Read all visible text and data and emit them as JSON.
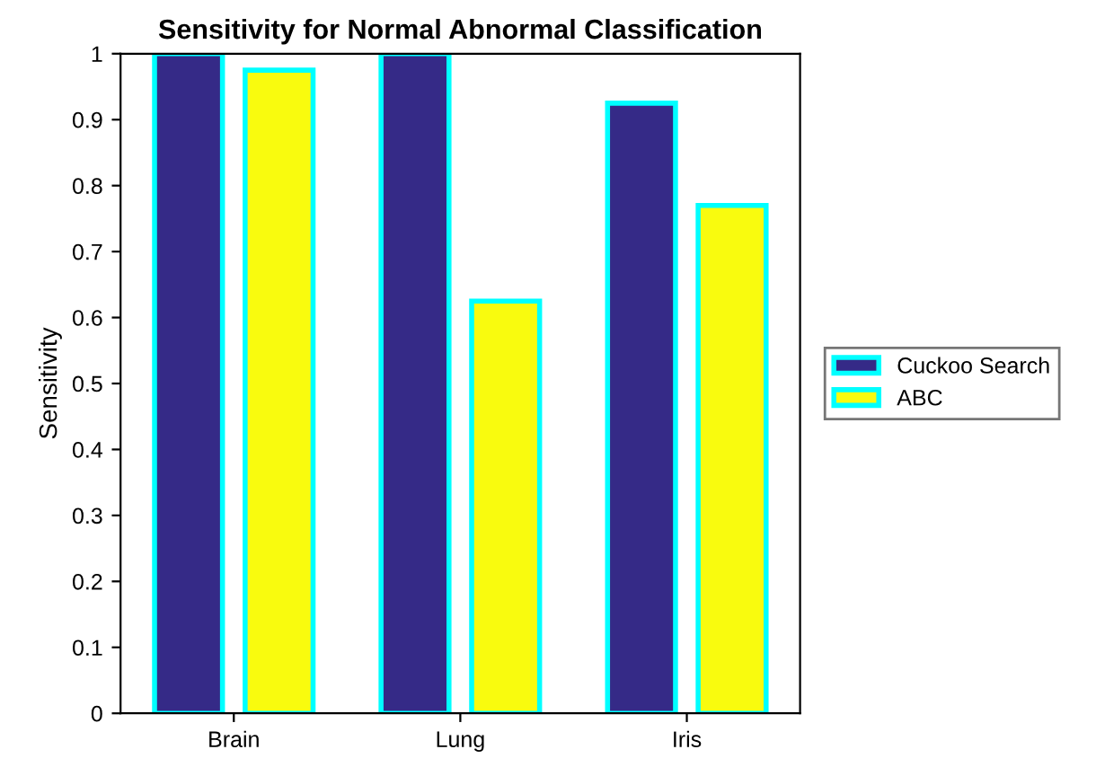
{
  "chart_data": {
    "type": "bar",
    "title": "Sensitivity for Normal Abnormal Classification",
    "ylabel": "Sensitivity",
    "categories": [
      "Brain",
      "Lung",
      "Iris"
    ],
    "series": [
      {
        "name": "Cuckoo Search",
        "color": "#352a87",
        "values": [
          1,
          1,
          0.925
        ]
      },
      {
        "name": "ABC",
        "color": "#f9fb0e",
        "values": [
          0.975,
          0.625,
          0.77
        ]
      }
    ],
    "ylim": [
      0,
      1
    ],
    "yticks": [
      0,
      0.1,
      0.2,
      0.3,
      0.4,
      0.5,
      0.6,
      0.7,
      0.8,
      0.9,
      1
    ],
    "grid": false,
    "legend": "right"
  }
}
